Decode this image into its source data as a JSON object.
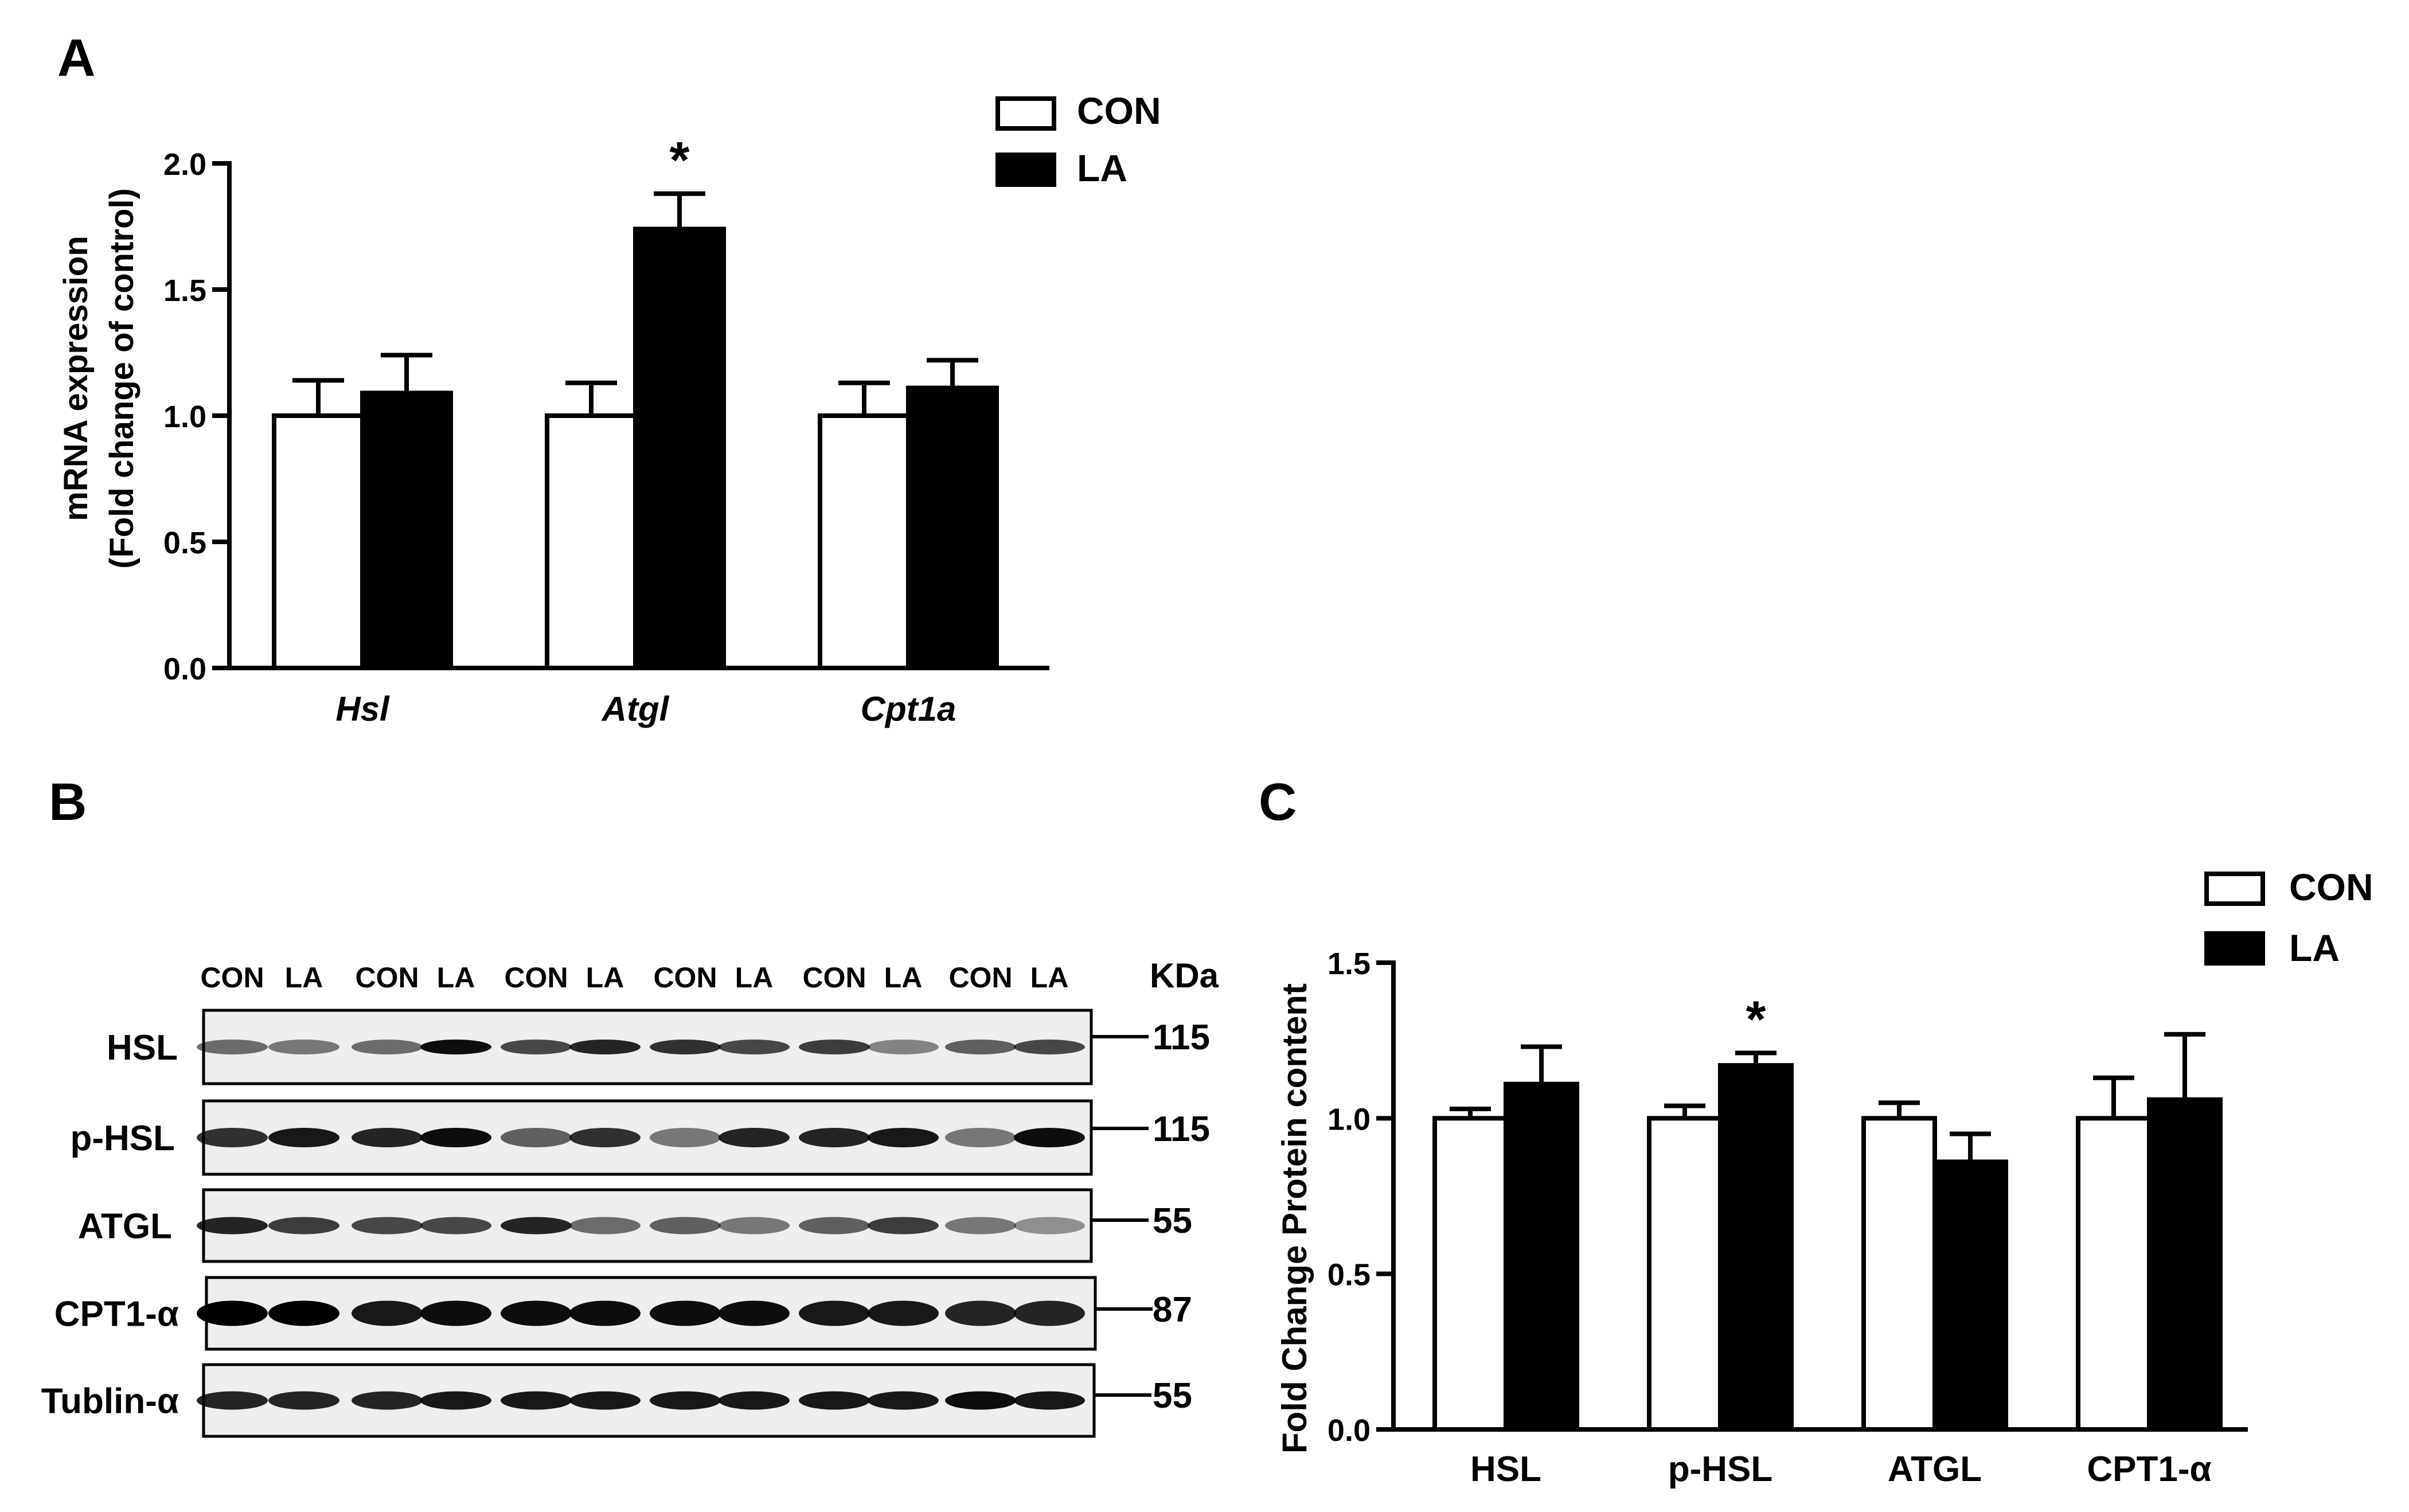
{
  "panels": {
    "a": "A",
    "b": "B",
    "c": "C"
  },
  "legend": {
    "con": "CON",
    "la": "LA"
  },
  "significance_marker": "*",
  "colors": {
    "con_fill": "#ffffff",
    "la_fill": "#000000",
    "axis": "#000000"
  },
  "chart_data": [
    {
      "panel": "A",
      "type": "bar",
      "ylabel_line1": "mRNA expression",
      "ylabel_line2": "(Fold change of control)",
      "categories": [
        "Hsl",
        "Atgl",
        "Cpt1a"
      ],
      "category_style": "italic",
      "ylim": [
        0,
        2.0
      ],
      "yticks": [
        "0.0",
        "0.5",
        "1.0",
        "1.5",
        "2.0"
      ],
      "series": [
        {
          "name": "CON",
          "values": [
            1.0,
            1.0,
            1.0
          ],
          "errors": [
            0.14,
            0.13,
            0.13
          ]
        },
        {
          "name": "LA",
          "values": [
            1.09,
            1.74,
            1.11
          ],
          "errors": [
            0.15,
            0.14,
            0.11
          ]
        }
      ],
      "significant": [
        {
          "category": "Atgl",
          "series": "LA"
        }
      ],
      "legend_position": "top-right"
    },
    {
      "panel": "C",
      "type": "bar",
      "ylabel": "Fold Change  Protein content",
      "categories": [
        "HSL",
        "p-HSL",
        "ATGL",
        "CPT1-α"
      ],
      "ylim": [
        0,
        1.5
      ],
      "yticks": [
        "0.0",
        "0.5",
        "1.0",
        "1.5"
      ],
      "series": [
        {
          "name": "CON",
          "values": [
            1.0,
            1.0,
            1.0,
            1.0
          ],
          "errors": [
            0.03,
            0.04,
            0.05,
            0.13
          ]
        },
        {
          "name": "LA",
          "values": [
            1.11,
            1.17,
            0.86,
            1.06
          ],
          "errors": [
            0.12,
            0.04,
            0.09,
            0.21
          ]
        }
      ],
      "significant": [
        {
          "category": "p-HSL",
          "series": "LA"
        }
      ],
      "legend_position": "top-right"
    }
  ],
  "blot": {
    "lane_labels": [
      "CON",
      "LA",
      "CON",
      "LA",
      "CON",
      "LA",
      "CON",
      "LA",
      "CON",
      "LA",
      "CON",
      "LA"
    ],
    "kda_label": "KDa",
    "rows": [
      {
        "protein": "HSL",
        "kda": "115"
      },
      {
        "protein": "p-HSL",
        "kda": "115"
      },
      {
        "protein": "ATGL",
        "kda": "55"
      },
      {
        "protein": "CPT1-α",
        "kda": "87"
      },
      {
        "protein": "Tublin-α",
        "kda": "55"
      }
    ]
  }
}
